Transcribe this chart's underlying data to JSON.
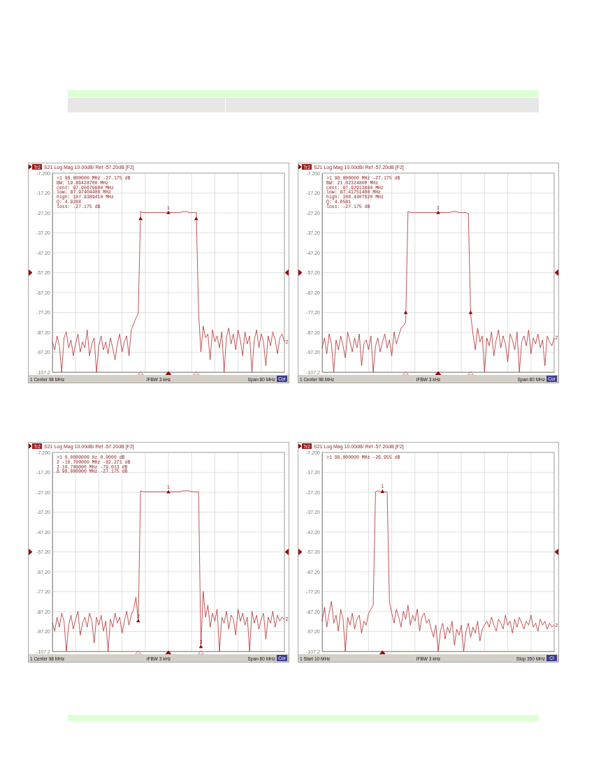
{
  "chart_data": [
    {
      "type": "line",
      "title": "S21 Log Mag 10.00dB/ Ref -57.20dB [F2]",
      "categories": [
        null,
        null,
        null,
        null,
        null,
        null,
        null,
        null,
        null,
        null,
        null,
        null,
        null,
        null,
        null,
        null,
        null,
        null,
        null,
        null,
        null,
        null,
        null,
        null,
        null,
        null,
        null,
        null,
        null,
        null,
        null,
        null,
        null,
        null,
        null,
        null,
        null,
        null,
        null,
        null,
        null,
        null,
        null,
        null,
        null,
        null,
        null,
        null,
        null,
        null,
        null,
        null,
        null,
        null,
        null,
        null,
        null,
        null,
        null,
        null,
        null,
        null,
        null,
        null,
        null,
        null,
        null,
        null,
        null,
        null,
        null,
        null,
        null,
        null,
        null,
        null,
        null,
        null,
        null,
        null,
        null,
        null,
        null,
        null,
        null,
        null,
        null,
        null,
        null,
        null,
        null,
        null,
        null,
        null,
        null,
        null,
        null,
        null,
        null,
        null,
        null
      ],
      "series": [
        {
          "name": "2",
          "color": "#b22a2a",
          "values": [
            -92,
            -96,
            -89,
            -94,
            -107.2,
            -90,
            -87,
            -95,
            -91,
            -99,
            -93,
            -88,
            -97,
            -92,
            -95,
            -86,
            -99,
            -93,
            -90,
            -107.2,
            -94,
            -89,
            -96,
            -92,
            -98,
            -90,
            -95,
            -101,
            -93,
            -88,
            -97,
            -92,
            -89,
            -99,
            -86,
            -83,
            -80,
            -78,
            -26.5,
            -27,
            -27,
            -27,
            -27,
            -27,
            -27,
            -27,
            -27,
            -27,
            -27,
            -27,
            -27,
            -27,
            -27,
            -27,
            -27,
            -27,
            -26.5,
            -26.5,
            -26.5,
            -27,
            -27,
            -27,
            -27,
            -77,
            -97,
            -84,
            -90,
            -88,
            -101,
            -86,
            -92,
            -89,
            -95,
            -87,
            -107.2,
            -90,
            -85,
            -93,
            -88,
            -96,
            -86,
            -91,
            -99,
            -87,
            -93,
            -89,
            -107.2,
            -91,
            -86,
            -95,
            -88,
            -92,
            -104,
            -89,
            -94,
            -87,
            -91,
            -98,
            -90,
            -88,
            -92
          ]
        },
        {
          "name": "1",
          "type": "scatter",
          "marker": "triangle",
          "color": "#9a0000",
          "values": [
            null,
            null,
            null,
            null,
            null,
            null,
            null,
            null,
            null,
            null,
            null,
            null,
            null,
            null,
            null,
            null,
            null,
            null,
            null,
            null,
            null,
            null,
            null,
            null,
            null,
            null,
            null,
            null,
            null,
            null,
            null,
            null,
            null,
            null,
            null,
            null,
            null,
            null,
            null,
            null,
            null,
            null,
            null,
            null,
            null,
            null,
            null,
            null,
            null,
            null,
            -27.175,
            null,
            null,
            null,
            null,
            null,
            null,
            null,
            null,
            null,
            null,
            null,
            null,
            null,
            null,
            null,
            null,
            null,
            null,
            null,
            null,
            null,
            null,
            null,
            null,
            null,
            null,
            null,
            null,
            null,
            null,
            null,
            null,
            null,
            null,
            null,
            null,
            null,
            null,
            null,
            null,
            null,
            null,
            null,
            null,
            null,
            null,
            null,
            null,
            null,
            null
          ]
        },
        {
          "type": "scatter",
          "marker": "triangle",
          "color": "#9a0000",
          "values": [
            null,
            null,
            null,
            null,
            null,
            null,
            null,
            null,
            null,
            null,
            null,
            null,
            null,
            null,
            null,
            null,
            null,
            null,
            null,
            null,
            null,
            null,
            null,
            null,
            null,
            null,
            null,
            null,
            null,
            null,
            null,
            null,
            null,
            null,
            null,
            null,
            null,
            null,
            -30.2,
            null,
            null,
            null,
            null,
            null,
            null,
            null,
            null,
            null,
            null,
            null,
            null,
            null,
            null,
            null,
            null,
            null,
            null,
            null,
            null,
            null,
            null,
            null,
            -30.2,
            null,
            null,
            null,
            null,
            null,
            null,
            null,
            null,
            null,
            null,
            null,
            null,
            null,
            null,
            null,
            null,
            null,
            null,
            null,
            null,
            null,
            null,
            null,
            null,
            null,
            null,
            null,
            null,
            null,
            null,
            null,
            null,
            null,
            null,
            null,
            null,
            null,
            null
          ]
        }
      ],
      "ylim": [
        -107.2,
        -7.2
      ],
      "yticks": [
        {
          "value": -7.2,
          "label": "-7.200"
        },
        {
          "value": -17.2,
          "label": "-17.20"
        },
        {
          "value": -27.2,
          "label": "-27.20"
        },
        {
          "value": -37.2,
          "label": "-37.20"
        },
        {
          "value": -47.2,
          "label": "-47.20"
        },
        {
          "value": -57.2,
          "label": "-57.20"
        },
        {
          "value": -67.2,
          "label": "-67.20"
        },
        {
          "value": -77.2,
          "label": "-77.20"
        },
        {
          "value": -87.2,
          "label": "-87.20"
        },
        {
          "value": -97.2,
          "label": "-97.20"
        },
        {
          "value": -107.2,
          "label": "-107.2"
        }
      ],
      "grid": true,
      "tick_labels": "y",
      "annotations": [
        "Tr2",
        ">1 98.000000 MHz -27.175 dB",
        "BW: 19.86428700 MHz",
        "cent: 97.90679800 MHz",
        "low: 87.97404400 MHz",
        "high: 107.8389410 MHz",
        "Q: 4.9288",
        "loss: -27.175 dB",
        "1 Center 98 MHz",
        "IFBW 3 kHz",
        "Span 80 MHz",
        "Cor"
      ]
    },
    {
      "type": "line",
      "title": "S21 Log Mag 10.00dB/ Ref -57.20dB [F2]",
      "categories": [
        null,
        null,
        null,
        null,
        null,
        null,
        null,
        null,
        null,
        null,
        null,
        null,
        null,
        null,
        null,
        null,
        null,
        null,
        null,
        null,
        null,
        null,
        null,
        null,
        null,
        null,
        null,
        null,
        null,
        null,
        null,
        null,
        null,
        null,
        null,
        null,
        null,
        null,
        null,
        null,
        null,
        null,
        null,
        null,
        null,
        null,
        null,
        null,
        null,
        null,
        null,
        null,
        null,
        null,
        null,
        null,
        null,
        null,
        null,
        null,
        null,
        null,
        null,
        null,
        null,
        null,
        null,
        null,
        null,
        null,
        null,
        null,
        null,
        null,
        null,
        null,
        null,
        null,
        null,
        null,
        null,
        null,
        null,
        null,
        null,
        null,
        null,
        null,
        null,
        null,
        null,
        null,
        null,
        null,
        null,
        null,
        null,
        null,
        null,
        null,
        null
      ],
      "series": [
        {
          "name": "2",
          "color": "#b22a2a",
          "values": [
            -95,
            -90,
            -98,
            -88,
            -93,
            -107.2,
            -91,
            -96,
            -89,
            -94,
            -100,
            -87,
            -92,
            -97,
            -90,
            -95,
            -88,
            -104,
            -93,
            -91,
            -96,
            -89,
            -107.2,
            -94,
            -90,
            -97,
            -92,
            -88,
            -95,
            -91,
            -99,
            -87,
            -93,
            -89,
            -85,
            -84,
            -82,
            -26.5,
            -27,
            -27,
            -27,
            -27,
            -27,
            -27,
            -27,
            -27,
            -27,
            -27,
            -27,
            -27,
            -27,
            -27,
            -27,
            -27,
            -27,
            -27,
            -26.5,
            -26.5,
            -26.5,
            -27,
            -27,
            -27,
            -27,
            -27.5,
            -78,
            -88,
            -96,
            -85,
            -92,
            -89,
            -107.2,
            -90,
            -94,
            -87,
            -99,
            -91,
            -86,
            -95,
            -89,
            -93,
            -102,
            -88,
            -91,
            -96,
            -87,
            -107.2,
            -92,
            -89,
            -94,
            -86,
            -98,
            -90,
            -93,
            -88,
            -95,
            -91,
            -104,
            -89,
            -92,
            -94,
            -90
          ]
        },
        {
          "name": "1",
          "type": "scatter",
          "marker": "triangle",
          "color": "#9a0000",
          "values": [
            null,
            null,
            null,
            null,
            null,
            null,
            null,
            null,
            null,
            null,
            null,
            null,
            null,
            null,
            null,
            null,
            null,
            null,
            null,
            null,
            null,
            null,
            null,
            null,
            null,
            null,
            null,
            null,
            null,
            null,
            null,
            null,
            null,
            null,
            null,
            null,
            null,
            null,
            null,
            null,
            null,
            null,
            null,
            null,
            null,
            null,
            null,
            null,
            null,
            null,
            -27.175,
            null,
            null,
            null,
            null,
            null,
            null,
            null,
            null,
            null,
            null,
            null,
            null,
            null,
            null,
            null,
            null,
            null,
            null,
            null,
            null,
            null,
            null,
            null,
            null,
            null,
            null,
            null,
            null,
            null,
            null,
            null,
            null,
            null,
            null,
            null,
            null,
            null,
            null,
            null,
            null,
            null,
            null,
            null,
            null,
            null,
            null,
            null,
            null,
            null,
            null
          ]
        },
        {
          "type": "scatter",
          "marker": "triangle",
          "color": "#9a0000",
          "values": [
            null,
            null,
            null,
            null,
            null,
            null,
            null,
            null,
            null,
            null,
            null,
            null,
            null,
            null,
            null,
            null,
            null,
            null,
            null,
            null,
            null,
            null,
            null,
            null,
            null,
            null,
            null,
            null,
            null,
            null,
            null,
            null,
            null,
            null,
            null,
            null,
            -77.4,
            null,
            null,
            null,
            null,
            null,
            null,
            null,
            null,
            null,
            null,
            null,
            null,
            null,
            null,
            null,
            null,
            null,
            null,
            null,
            null,
            null,
            null,
            null,
            null,
            null,
            null,
            null,
            -77.4,
            null,
            null,
            null,
            null,
            null,
            null,
            null,
            null,
            null,
            null,
            null,
            null,
            null,
            null,
            null,
            null,
            null,
            null,
            null,
            null,
            null,
            null,
            null,
            null,
            null,
            null,
            null,
            null,
            null,
            null,
            null,
            null,
            null,
            null,
            null,
            null
          ]
        }
      ],
      "ylim": [
        -107.2,
        -7.2
      ],
      "yticks": [
        {
          "value": -7.2,
          "label": "-7.200"
        },
        {
          "value": -17.2,
          "label": "-17.20"
        },
        {
          "value": -27.2,
          "label": "-27.20"
        },
        {
          "value": -37.2,
          "label": "-37.20"
        },
        {
          "value": -47.2,
          "label": "-47.20"
        },
        {
          "value": -57.2,
          "label": "-57.20"
        },
        {
          "value": -67.2,
          "label": "-67.20"
        },
        {
          "value": -77.2,
          "label": "-77.20"
        },
        {
          "value": -87.2,
          "label": "-87.20"
        },
        {
          "value": -97.2,
          "label": "-97.20"
        },
        {
          "value": -107.2,
          "label": "-107.2"
        }
      ],
      "grid": true,
      "tick_labels": "y",
      "annotations": [
        "Tr2",
        ">1 98.000000 MHz -27.175 dB",
        "BW: 21.02324800 MHz",
        "cent: 97.92913800 MHz",
        "low: 87.41751400 MHz",
        "high: 108.4407620 MHz",
        "Q: 4.6581",
        "loss: -27.175 dB",
        "1 Center 98 MHz",
        "IFBW 3 kHz",
        "Span 80 MHz",
        "Cor"
      ]
    },
    {
      "type": "line",
      "title": "S21 Log Mag 10.00dB/ Ref -57.20dB [F2]",
      "categories": [
        null,
        null,
        null,
        null,
        null,
        null,
        null,
        null,
        null,
        null,
        null,
        null,
        null,
        null,
        null,
        null,
        null,
        null,
        null,
        null,
        null,
        null,
        null,
        null,
        null,
        null,
        null,
        null,
        null,
        null,
        null,
        null,
        null,
        null,
        null,
        null,
        null,
        null,
        null,
        null,
        null,
        null,
        null,
        null,
        null,
        null,
        null,
        null,
        null,
        null,
        null,
        null,
        null,
        null,
        null,
        null,
        null,
        null,
        null,
        null,
        null,
        null,
        null,
        null,
        null,
        null,
        null,
        null,
        null,
        null,
        null,
        null,
        null,
        null,
        null,
        null,
        null,
        null,
        null,
        null,
        null,
        null,
        null,
        null,
        null,
        null,
        null,
        null,
        null,
        null,
        null,
        null,
        null,
        null,
        null,
        null,
        null,
        null,
        null,
        null,
        null
      ],
      "series": [
        {
          "name": "2",
          "color": "#b22a2a",
          "values": [
            -93,
            -97,
            -90,
            -95,
            -88,
            -92,
            -107.2,
            -94,
            -89,
            -96,
            -91,
            -87,
            -99,
            -93,
            -90,
            -95,
            -88,
            -92,
            -103,
            -90,
            -94,
            -89,
            -97,
            -92,
            -107.2,
            -91,
            -95,
            -88,
            -93,
            -90,
            -98,
            -92,
            -87,
            -94,
            -89,
            -86,
            -80,
            -92,
            -26.5,
            -27,
            -27,
            -27,
            -27,
            -27,
            -27,
            -27,
            -27,
            -27,
            -27,
            -27,
            -27,
            -27,
            -27,
            -27,
            -27,
            -27,
            -26.5,
            -26.5,
            -26.5,
            -26.5,
            -27,
            -27,
            -27,
            -27,
            -105,
            -77,
            -90,
            -84,
            -95,
            -88,
            -92,
            -86,
            -107.2,
            -90,
            -93,
            -87,
            -96,
            -89,
            -91,
            -99,
            -86,
            -92,
            -88,
            -94,
            -90,
            -107.2,
            -87,
            -93,
            -89,
            -96,
            -91,
            -88,
            -101,
            -90,
            -93,
            -87,
            -95,
            -89,
            -92,
            -90,
            -91
          ]
        },
        {
          "name": "1",
          "type": "scatter",
          "marker": "triangle",
          "color": "#9a0000",
          "values": [
            null,
            null,
            null,
            null,
            null,
            null,
            null,
            null,
            null,
            null,
            null,
            null,
            null,
            null,
            null,
            null,
            null,
            null,
            null,
            null,
            null,
            null,
            null,
            null,
            null,
            null,
            null,
            null,
            null,
            null,
            null,
            null,
            null,
            null,
            null,
            null,
            null,
            null,
            null,
            null,
            null,
            null,
            null,
            null,
            null,
            null,
            null,
            null,
            null,
            null,
            -27.175,
            null,
            null,
            null,
            null,
            null,
            null,
            null,
            null,
            null,
            null,
            null,
            null,
            null,
            null,
            null,
            null,
            null,
            null,
            null,
            null,
            null,
            null,
            null,
            null,
            null,
            null,
            null,
            null,
            null,
            null,
            null,
            null,
            null,
            null,
            null,
            null,
            null,
            null,
            null,
            null,
            null,
            null,
            null,
            null,
            null,
            null,
            null,
            null,
            null,
            null
          ]
        },
        {
          "name": "2",
          "type": "scatter",
          "marker": "triangle",
          "color": "#9a0000",
          "values": [
            null,
            null,
            null,
            null,
            null,
            null,
            null,
            null,
            null,
            null,
            null,
            null,
            null,
            null,
            null,
            null,
            null,
            null,
            null,
            null,
            null,
            null,
            null,
            null,
            null,
            null,
            null,
            null,
            null,
            null,
            null,
            null,
            null,
            null,
            null,
            null,
            null,
            -92,
            null,
            null,
            null,
            null,
            null,
            null,
            null,
            null,
            null,
            null,
            null,
            null,
            null,
            null,
            null,
            null,
            null,
            null,
            null,
            null,
            null,
            null,
            null,
            null,
            null,
            null,
            null,
            null,
            null,
            null,
            null,
            null,
            null,
            null,
            null,
            null,
            null,
            null,
            null,
            null,
            null,
            null,
            null,
            null,
            null,
            null,
            null,
            null,
            null,
            null,
            null,
            null,
            null,
            null,
            null,
            null,
            null,
            null,
            null,
            null,
            null,
            null,
            null
          ]
        },
        {
          "name": "3",
          "type": "scatter",
          "marker": "triangle",
          "color": "#9a0000",
          "values": [
            null,
            null,
            null,
            null,
            null,
            null,
            null,
            null,
            null,
            null,
            null,
            null,
            null,
            null,
            null,
            null,
            null,
            null,
            null,
            null,
            null,
            null,
            null,
            null,
            null,
            null,
            null,
            null,
            null,
            null,
            null,
            null,
            null,
            null,
            null,
            null,
            null,
            null,
            null,
            null,
            null,
            null,
            null,
            null,
            null,
            null,
            null,
            null,
            null,
            null,
            null,
            null,
            null,
            null,
            null,
            null,
            null,
            null,
            null,
            null,
            null,
            null,
            null,
            null,
            -105,
            null,
            null,
            null,
            null,
            null,
            null,
            null,
            null,
            null,
            null,
            null,
            null,
            null,
            null,
            null,
            null,
            null,
            null,
            null,
            null,
            null,
            null,
            null,
            null,
            null,
            null,
            null,
            null,
            null,
            null,
            null,
            null,
            null,
            null,
            null,
            null
          ]
        }
      ],
      "ylim": [
        -107.2,
        -7.2
      ],
      "yticks": [
        {
          "value": -7.2,
          "label": "-7.200"
        },
        {
          "value": -17.2,
          "label": "-17.20"
        },
        {
          "value": -27.2,
          "label": "-27.20"
        },
        {
          "value": -37.2,
          "label": "-37.20"
        },
        {
          "value": -47.2,
          "label": "-47.20"
        },
        {
          "value": -57.2,
          "label": "-57.20"
        },
        {
          "value": -67.2,
          "label": "-67.20"
        },
        {
          "value": -77.2,
          "label": "-77.20"
        },
        {
          "value": -87.2,
          "label": "-87.20"
        },
        {
          "value": -97.2,
          "label": "-97.20"
        },
        {
          "value": -107.2,
          "label": "-107.2"
        }
      ],
      "grid": true,
      "tick_labels": "y",
      "annotations": [
        "Tr2",
        ">1 0.0000000 Hz 0.0000 dB",
        "2 -10.700000 MHz -82.271 dB",
        "3 10.700000 MHz -79.013 dB",
        "Δ 98.000000 MHz -27.175 dB",
        "1 Center 98 MHz",
        "IFBW 3 kHz",
        "Span 80 MHz",
        "Cor"
      ]
    },
    {
      "type": "line",
      "title": "S21 Log Mag 10.00dB/ Ref -57.20dB [F2]",
      "categories": [
        null,
        null,
        null,
        null,
        null,
        null,
        null,
        null,
        null,
        null,
        null,
        null,
        null,
        null,
        null,
        null,
        null,
        null,
        null,
        null,
        null,
        null,
        null,
        null,
        null,
        null,
        null,
        null,
        null,
        null,
        null,
        null,
        null,
        null,
        null,
        null,
        null,
        null,
        null,
        null,
        null,
        null,
        null,
        null,
        null,
        null,
        null,
        null,
        null,
        null,
        null,
        null,
        null,
        null,
        null,
        null,
        null,
        null,
        null,
        null,
        null,
        null,
        null,
        null,
        null,
        null,
        null,
        null,
        null,
        null,
        null,
        null,
        null,
        null,
        null,
        null,
        null,
        null,
        null,
        null,
        null,
        null,
        null,
        null,
        null,
        null,
        null,
        null,
        null,
        null,
        null,
        null,
        null,
        null,
        null,
        null,
        null,
        null,
        null,
        null,
        null
      ],
      "series": [
        {
          "name": "2",
          "color": "#b22a2a",
          "values": [
            -92,
            -85,
            -95,
            -88,
            -82,
            -93,
            -89,
            -97,
            -86,
            -91,
            -107.2,
            -90,
            -94,
            -88,
            -96,
            -91,
            -89,
            -98,
            -92,
            -94,
            -88,
            -86,
            -84,
            -27,
            -26.5,
            -27,
            -27,
            -27,
            -27,
            -82,
            -88,
            -93,
            -86,
            -90,
            -95,
            -87,
            -91,
            -84,
            -94,
            -89,
            -92,
            -86,
            -97,
            -90,
            -88,
            -93,
            -91,
            -96,
            -100,
            -94,
            -107.2,
            -97,
            -93,
            -101,
            -95,
            -98,
            -92,
            -104,
            -96,
            -99,
            -94,
            -107.2,
            -97,
            -93,
            -100,
            -95,
            -98,
            -92,
            -102,
            -96,
            -94,
            -92,
            -95,
            -90,
            -94,
            -97,
            -91,
            -93,
            -96,
            -89,
            -94,
            -92,
            -98,
            -91,
            -95,
            -90,
            -93,
            -96,
            -92,
            -94,
            -89,
            -95,
            -93,
            -97,
            -91,
            -94,
            -92,
            -96,
            -93,
            -95,
            -94
          ]
        },
        {
          "name": "1",
          "type": "scatter",
          "marker": "triangle",
          "color": "#9a0000",
          "values": [
            null,
            null,
            null,
            null,
            null,
            null,
            null,
            null,
            null,
            null,
            null,
            null,
            null,
            null,
            null,
            null,
            null,
            null,
            null,
            null,
            null,
            null,
            null,
            null,
            null,
            null,
            -26.955,
            null,
            null,
            null,
            null,
            null,
            null,
            null,
            null,
            null,
            null,
            null,
            null,
            null,
            null,
            null,
            null,
            null,
            null,
            null,
            null,
            null,
            null,
            null,
            null,
            null,
            null,
            null,
            null,
            null,
            null,
            null,
            null,
            null,
            null,
            null,
            null,
            null,
            null,
            null,
            null,
            null,
            null,
            null,
            null,
            null,
            null,
            null,
            null,
            null,
            null,
            null,
            null,
            null,
            null,
            null,
            null,
            null,
            null,
            null,
            null,
            null,
            null,
            null,
            null,
            null,
            null,
            null,
            null,
            null,
            null,
            null,
            null,
            null,
            null
          ]
        }
      ],
      "ylim": [
        -107.2,
        -7.2
      ],
      "yticks": [
        {
          "value": -7.2,
          "label": "-7.200"
        },
        {
          "value": -17.2,
          "label": "-17.20"
        },
        {
          "value": -27.2,
          "label": "-27.20"
        },
        {
          "value": -37.2,
          "label": "-37.20"
        },
        {
          "value": -47.2,
          "label": "-47.20"
        },
        {
          "value": -57.2,
          "label": "-57.20"
        },
        {
          "value": -67.2,
          "label": "-67.20"
        },
        {
          "value": -77.2,
          "label": "-77.20"
        },
        {
          "value": -87.2,
          "label": "-87.20"
        },
        {
          "value": -97.2,
          "label": "-97.20"
        },
        {
          "value": -107.2,
          "label": "-107.2"
        }
      ],
      "grid": true,
      "tick_labels": "y",
      "annotations": [
        "Tr2",
        ">1 98.000000 MHz -26.955 dB",
        "1 Start 10 MHz",
        "IFBW 3 kHz",
        "Stop 350 MHz",
        "C!"
      ]
    }
  ]
}
